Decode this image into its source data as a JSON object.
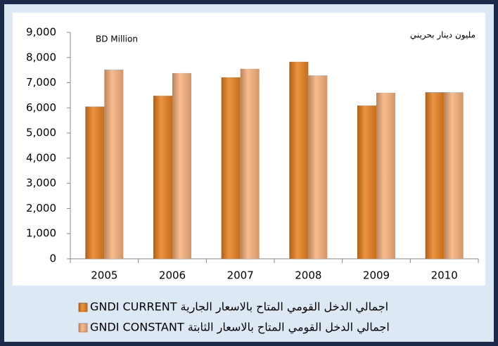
{
  "chart_data": {
    "type": "bar",
    "annotations": [
      "BD Million",
      "مليون دينار بحريني"
    ],
    "categories": [
      "2005",
      "2006",
      "2007",
      "2008",
      "2009",
      "2010"
    ],
    "series": [
      {
        "name": "GNDI CURRENT  اجمالي الدخل القومي المتاح بالاسعار الجارية",
        "color": "#e8801e",
        "values": [
          6050,
          6480,
          7210,
          7830,
          6090,
          6620
        ]
      },
      {
        "name": "GNDI CONSTANT  اجمالي الدخل القومي المتاح بالاسعار الثابتة",
        "color": "#f7b07a",
        "values": [
          7520,
          7380,
          7550,
          7290,
          6600,
          6620
        ]
      }
    ],
    "ylim": [
      0,
      9000
    ],
    "yticks": [
      0,
      {
        "value": 1000,
        "label": "1,000"
      },
      {
        "value": 2000,
        "label": "2,000"
      },
      {
        "value": 3000,
        "label": "3,000"
      },
      {
        "value": 4000,
        "label": "4,000"
      },
      {
        "value": 5000,
        "label": "5,000"
      },
      {
        "value": 6000,
        "label": "6,000"
      },
      {
        "value": 7000,
        "label": "7,000"
      },
      {
        "value": 8000,
        "label": "8,000"
      },
      {
        "value": 9000,
        "label": "9,000"
      }
    ],
    "grid": false,
    "legend": "bottom"
  }
}
